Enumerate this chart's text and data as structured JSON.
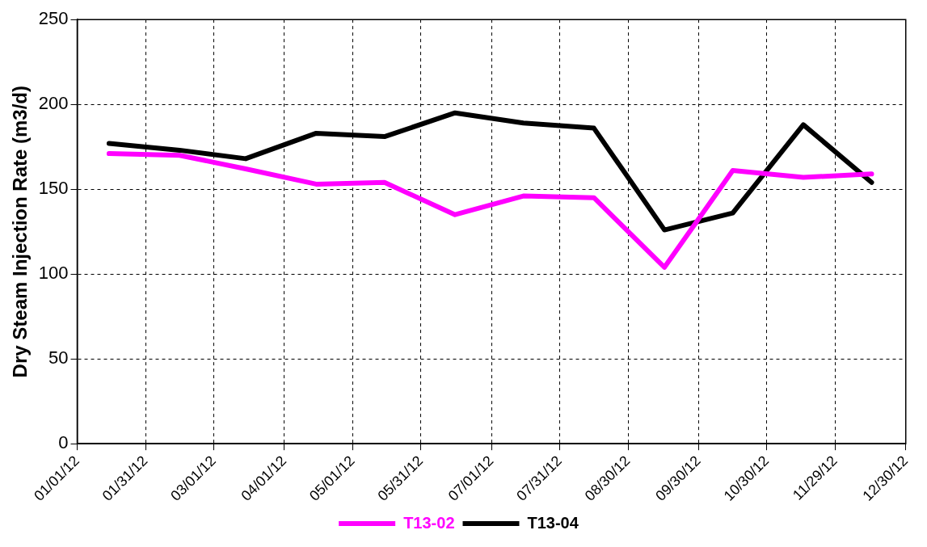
{
  "chart_data": {
    "type": "line",
    "ylabel": "Dry Steam Injection Rate (m3/d)",
    "x": [
      "2012-01-15",
      "2012-02-15",
      "2012-03-15",
      "2012-04-15",
      "2012-05-15",
      "2012-06-15",
      "2012-07-15",
      "2012-08-15",
      "2012-09-15",
      "2012-10-15",
      "2012-11-15",
      "2012-12-15"
    ],
    "series": [
      {
        "name": "T13-02",
        "color": "#ff00ff",
        "values": [
          171,
          170,
          162,
          153,
          154,
          135,
          146,
          145,
          104,
          161,
          157,
          159
        ]
      },
      {
        "name": "T13-04",
        "color": "#000000",
        "values": [
          177,
          173,
          168,
          183,
          181,
          195,
          189,
          186,
          126,
          136,
          188,
          154
        ]
      }
    ],
    "xlim": [
      "2012-01-01",
      "2012-12-30"
    ],
    "xticks": [
      {
        "value": "2012-01-01",
        "label": "01/01/12"
      },
      {
        "value": "2012-01-31",
        "label": "01/31/12"
      },
      {
        "value": "2012-03-01",
        "label": "03/01/12"
      },
      {
        "value": "2012-04-01",
        "label": "04/01/12"
      },
      {
        "value": "2012-05-01",
        "label": "05/01/12"
      },
      {
        "value": "2012-05-31",
        "label": "05/31/12"
      },
      {
        "value": "2012-07-01",
        "label": "07/01/12"
      },
      {
        "value": "2012-07-31",
        "label": "07/31/12"
      },
      {
        "value": "2012-08-30",
        "label": "08/30/12"
      },
      {
        "value": "2012-09-30",
        "label": "09/30/12"
      },
      {
        "value": "2012-10-30",
        "label": "10/30/12"
      },
      {
        "value": "2012-11-29",
        "label": "11/29/12"
      },
      {
        "value": "2012-12-30",
        "label": "12/30/12"
      }
    ],
    "ylim": [
      0,
      250
    ],
    "yticks": [
      0,
      50,
      100,
      150,
      200,
      250
    ],
    "grid": true,
    "legend": "bottom",
    "marker": "none",
    "line_style": "solid"
  }
}
